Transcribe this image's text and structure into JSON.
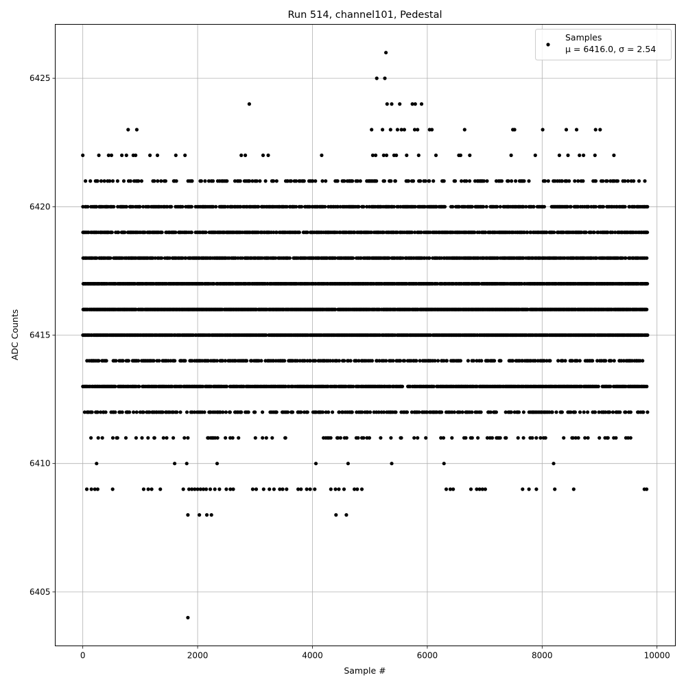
{
  "chart_data": {
    "type": "scatter",
    "title": "Run 514, channel101, Pedestal",
    "xlabel": "Sample #",
    "ylabel": "ADC Counts",
    "xlim": [
      -480,
      10320
    ],
    "ylim": [
      6402.9,
      6427.1
    ],
    "x_ticks": [
      0,
      2000,
      4000,
      6000,
      8000,
      10000
    ],
    "y_ticks": [
      6405,
      6410,
      6415,
      6420,
      6425
    ],
    "x_tick_labels": [
      "0",
      "2000",
      "4000",
      "6000",
      "8000",
      "10000"
    ],
    "y_tick_labels": [
      "6405",
      "6410",
      "6415",
      "6420",
      "6425"
    ],
    "grid": true,
    "legend": "top-right",
    "marker_color": "#000000",
    "sample_range": [
      0,
      9830
    ],
    "series": [
      {
        "name": "Samples",
        "annotation": "μ = 6416.0, σ = 2.54",
        "level_fill": [
          {
            "y": 6413,
            "fraction": 0.8,
            "start": 0,
            "end": 9830
          },
          {
            "y": 6414,
            "fraction": 0.45,
            "start": 40,
            "end": 9760
          },
          {
            "y": 6415,
            "fraction": 0.9,
            "start": 0,
            "end": 9830
          },
          {
            "y": 6416,
            "fraction": 0.95,
            "start": 0,
            "end": 9830
          },
          {
            "y": 6417,
            "fraction": 0.9,
            "start": 0,
            "end": 9830
          },
          {
            "y": 6418,
            "fraction": 0.75,
            "start": 0,
            "end": 9830
          },
          {
            "y": 6419,
            "fraction": 0.7,
            "start": 0,
            "end": 9830
          },
          {
            "y": 6420,
            "fraction": 0.6,
            "start": 0,
            "end": 9830
          },
          {
            "y": 6421,
            "fraction": 0.3,
            "start": 40,
            "end": 9830
          },
          {
            "y": 6412,
            "fraction": 0.35,
            "start": 0,
            "end": 9830
          },
          {
            "y": 6411,
            "fraction": 0.15,
            "start": 100,
            "end": 9600
          }
        ],
        "points": [
          [
            0,
            6422
          ],
          [
            790,
            6423
          ],
          [
            940,
            6423
          ],
          [
            280,
            6422
          ],
          [
            450,
            6422
          ],
          [
            500,
            6422
          ],
          [
            680,
            6422
          ],
          [
            760,
            6422
          ],
          [
            880,
            6422
          ],
          [
            920,
            6422
          ],
          [
            1170,
            6422
          ],
          [
            1300,
            6422
          ],
          [
            1620,
            6422
          ],
          [
            1780,
            6422
          ],
          [
            2760,
            6422
          ],
          [
            2830,
            6422
          ],
          [
            3140,
            6422
          ],
          [
            3230,
            6422
          ],
          [
            4160,
            6422
          ],
          [
            2900,
            6424
          ],
          [
            5030,
            6423
          ],
          [
            5120,
            6425
          ],
          [
            5280,
            6426
          ],
          [
            5260,
            6425
          ],
          [
            5300,
            6424
          ],
          [
            5380,
            6424
          ],
          [
            5520,
            6424
          ],
          [
            5740,
            6424
          ],
          [
            5790,
            6424
          ],
          [
            5900,
            6424
          ],
          [
            5220,
            6423
          ],
          [
            5360,
            6423
          ],
          [
            5480,
            6423
          ],
          [
            5550,
            6423
          ],
          [
            5600,
            6423
          ],
          [
            5780,
            6423
          ],
          [
            5830,
            6423
          ],
          [
            6040,
            6423
          ],
          [
            6080,
            6423
          ],
          [
            6650,
            6423
          ],
          [
            7490,
            6423
          ],
          [
            7520,
            6423
          ],
          [
            8010,
            6423
          ],
          [
            8420,
            6423
          ],
          [
            8600,
            6423
          ],
          [
            8930,
            6423
          ],
          [
            9010,
            6423
          ],
          [
            5050,
            6422
          ],
          [
            5100,
            6422
          ],
          [
            5240,
            6422
          ],
          [
            5290,
            6422
          ],
          [
            5420,
            6422
          ],
          [
            5460,
            6422
          ],
          [
            5640,
            6422
          ],
          [
            5850,
            6422
          ],
          [
            6150,
            6422
          ],
          [
            6550,
            6422
          ],
          [
            6580,
            6422
          ],
          [
            6740,
            6422
          ],
          [
            7460,
            6422
          ],
          [
            7880,
            6422
          ],
          [
            8300,
            6422
          ],
          [
            8450,
            6422
          ],
          [
            8650,
            6422
          ],
          [
            8720,
            6422
          ],
          [
            8920,
            6422
          ],
          [
            9250,
            6422
          ],
          [
            240,
            6410
          ],
          [
            1600,
            6410
          ],
          [
            1810,
            6410
          ],
          [
            2340,
            6410
          ],
          [
            4060,
            6410
          ],
          [
            4620,
            6410
          ],
          [
            5380,
            6410
          ],
          [
            6290,
            6410
          ],
          [
            8200,
            6410
          ],
          [
            70,
            6409
          ],
          [
            150,
            6409
          ],
          [
            210,
            6409
          ],
          [
            260,
            6409
          ],
          [
            520,
            6409
          ],
          [
            1060,
            6409
          ],
          [
            1140,
            6409
          ],
          [
            1200,
            6409
          ],
          [
            1350,
            6409
          ],
          [
            1750,
            6409
          ],
          [
            1850,
            6409
          ],
          [
            1900,
            6409
          ],
          [
            1950,
            6409
          ],
          [
            2000,
            6409
          ],
          [
            2050,
            6409
          ],
          [
            2100,
            6409
          ],
          [
            2150,
            6409
          ],
          [
            2220,
            6409
          ],
          [
            2300,
            6409
          ],
          [
            2380,
            6409
          ],
          [
            2500,
            6409
          ],
          [
            2570,
            6409
          ],
          [
            2620,
            6409
          ],
          [
            2960,
            6409
          ],
          [
            3020,
            6409
          ],
          [
            3150,
            6409
          ],
          [
            3250,
            6409
          ],
          [
            3330,
            6409
          ],
          [
            3430,
            6409
          ],
          [
            3480,
            6409
          ],
          [
            3550,
            6409
          ],
          [
            3750,
            6409
          ],
          [
            3800,
            6409
          ],
          [
            3900,
            6409
          ],
          [
            3960,
            6409
          ],
          [
            4040,
            6409
          ],
          [
            4320,
            6409
          ],
          [
            4400,
            6409
          ],
          [
            4460,
            6409
          ],
          [
            4550,
            6409
          ],
          [
            4730,
            6409
          ],
          [
            4780,
            6409
          ],
          [
            4860,
            6409
          ],
          [
            6330,
            6409
          ],
          [
            6400,
            6409
          ],
          [
            6450,
            6409
          ],
          [
            6760,
            6409
          ],
          [
            6860,
            6409
          ],
          [
            6910,
            6409
          ],
          [
            6960,
            6409
          ],
          [
            7010,
            6409
          ],
          [
            7660,
            6409
          ],
          [
            7770,
            6409
          ],
          [
            7900,
            6409
          ],
          [
            8220,
            6409
          ],
          [
            8550,
            6409
          ],
          [
            9780,
            6409
          ],
          [
            9820,
            6409
          ],
          [
            1830,
            6408
          ],
          [
            2030,
            6408
          ],
          [
            2160,
            6408
          ],
          [
            2240,
            6408
          ],
          [
            4410,
            6408
          ],
          [
            4590,
            6408
          ],
          [
            1830,
            6404
          ]
        ]
      }
    ]
  }
}
